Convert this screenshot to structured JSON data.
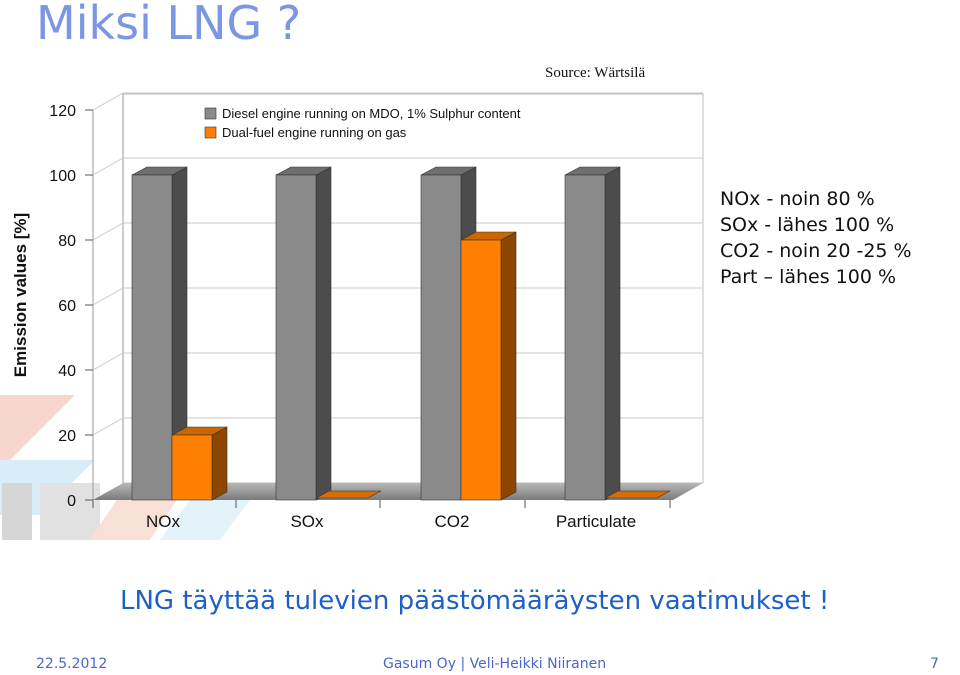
{
  "slide": {
    "title": "Miksi LNG ?",
    "notes": [
      "NOx - noin 80 %",
      "SOx - lähes 100 %",
      "CO2 - noin 20 -25 %",
      "Part – lähes 100 %"
    ],
    "subtitle": "LNG täyttää tulevien päästömääräysten vaatimukset !",
    "footer": {
      "date": "22.5.2012",
      "center": "Gasum Oy | Veli-Heikki Niiranen",
      "page": "7"
    }
  },
  "colors": {
    "title": "#7a96e4",
    "diesel": "#8a8a8a",
    "lng": "#ff7f00",
    "subtitle": "#1d5fc9",
    "footer": "#4a66c8"
  },
  "chart_data": {
    "type": "bar",
    "source": "Source: Wärtsilä",
    "ylabel": "Emission values [%]",
    "xlabel": "",
    "ylim": [
      0,
      120
    ],
    "yticks": [
      0,
      20,
      40,
      60,
      80,
      100,
      120
    ],
    "categories": [
      "NOx",
      "SOx",
      "CO2",
      "Particulate"
    ],
    "series": [
      {
        "name": "Diesel engine running on MDO, 1% Sulphur content",
        "values": [
          100,
          100,
          100,
          100
        ],
        "color": "#8a8a8a"
      },
      {
        "name": "Dual-fuel engine running on gas",
        "values": [
          20,
          0,
          80,
          0
        ],
        "color": "#ff7f00"
      }
    ],
    "legend": "top-left",
    "grid": true
  }
}
